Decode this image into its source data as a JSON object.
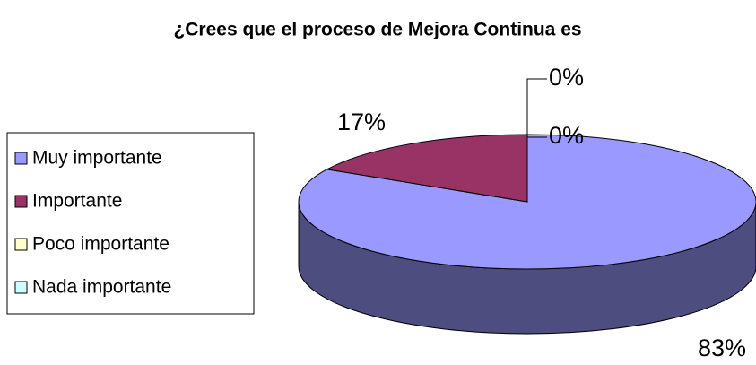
{
  "chart_data": {
    "type": "pie",
    "title": "¿Crees que el proceso de Mejora Continua es",
    "categories": [
      "Muy importante",
      "Importante",
      "Poco importante",
      "Nada importante"
    ],
    "values": [
      83,
      17,
      0,
      0
    ],
    "value_labels": [
      "83%",
      "17%",
      "0%",
      "0%"
    ],
    "colors": [
      "#9999ff",
      "#993366",
      "#ffffcc",
      "#ccffff"
    ],
    "legend": "left"
  }
}
